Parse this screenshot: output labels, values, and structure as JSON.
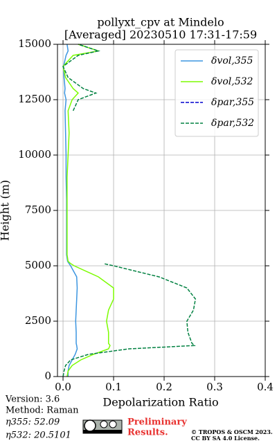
{
  "chart_data": {
    "type": "profile",
    "title": "pollyxt_cpv at Mindelo",
    "subtitle": "[Averaged] 20230510 17:31-17:59",
    "xlabel": "Depolarization Ratio",
    "ylabel": "Height (m)",
    "xlim": [
      -0.011,
      0.4
    ],
    "xticks": [
      {
        "value": 0,
        "label": "0.0"
      },
      0.1,
      0.2,
      0.3,
      0.4
    ],
    "ylim": [
      0,
      15000
    ],
    "yticks": [
      0,
      2500,
      5000,
      7500,
      10000,
      12500,
      15000
    ],
    "grid": true,
    "legend": "upper right",
    "heights": [
      0,
      250,
      500,
      750,
      1000,
      1250,
      1400,
      1500,
      2000,
      2500,
      3000,
      3500,
      4000,
      4500,
      5000,
      5100,
      5200,
      5500,
      6000,
      7000,
      8000,
      9000,
      10000,
      11000,
      12000,
      12500,
      12800,
      13000,
      13500,
      14000,
      14500,
      14700,
      15000
    ],
    "series": [
      {
        "name": "δvol,355",
        "color": "#3b95e0",
        "dash": false,
        "values": [
          0.01,
          0.01,
          0.012,
          0.018,
          0.024,
          0.028,
          0.027,
          0.026,
          0.026,
          0.025,
          0.026,
          0.027,
          0.028,
          0.027,
          0.015,
          0.012,
          0.009,
          0.007,
          0.007,
          0.007,
          0.007,
          0.006,
          0.006,
          0.005,
          0.004,
          0.006,
          0.003,
          0.004,
          0.002,
          0.001,
          0.006,
          0.01,
          0.008
        ]
      },
      {
        "name": "δvol,532",
        "color": "#7cfc00",
        "dash": false,
        "values": [
          0.008,
          0.01,
          0.018,
          0.035,
          0.06,
          0.09,
          0.093,
          0.09,
          0.09,
          0.086,
          0.09,
          0.1,
          0.1,
          0.07,
          0.022,
          0.015,
          0.01,
          0.008,
          0.008,
          0.008,
          0.008,
          0.008,
          0.01,
          0.012,
          0.01,
          0.018,
          0.03,
          0.02,
          0.005,
          0.0,
          0.02,
          0.07,
          0.03
        ]
      },
      {
        "name": "δpar,355",
        "color": "#0000cd",
        "dash": true,
        "values": [
          null,
          null,
          null,
          null,
          null,
          null,
          null,
          null,
          null,
          null,
          null,
          null,
          null,
          null,
          null,
          null,
          null,
          null,
          null,
          null,
          null,
          null,
          null,
          null,
          null,
          null,
          null,
          null,
          null,
          null,
          null,
          null,
          null
        ]
      },
      {
        "name": "δpar,532",
        "color": "#008040",
        "dash": true,
        "values": [
          0.0,
          0.002,
          0.005,
          0.015,
          0.05,
          0.13,
          0.26,
          0.255,
          0.247,
          0.245,
          0.258,
          0.262,
          0.245,
          0.19,
          0.1,
          0.08,
          null,
          null,
          null,
          null,
          null,
          null,
          null,
          null,
          0.02,
          0.03,
          0.065,
          0.04,
          0.01,
          0.0,
          0.03,
          0.07,
          0.03
        ]
      }
    ],
    "footer": {
      "version": "Version: 3.6",
      "method": "Method: Raman",
      "eta355": "η355:  52.09",
      "eta532": "η532: 20.5101",
      "preliminary": "Preliminary",
      "results": "Results.",
      "copyright": "© TROPOS & OSCM 2023.",
      "license": "CC BY SA 4.0 License."
    }
  }
}
